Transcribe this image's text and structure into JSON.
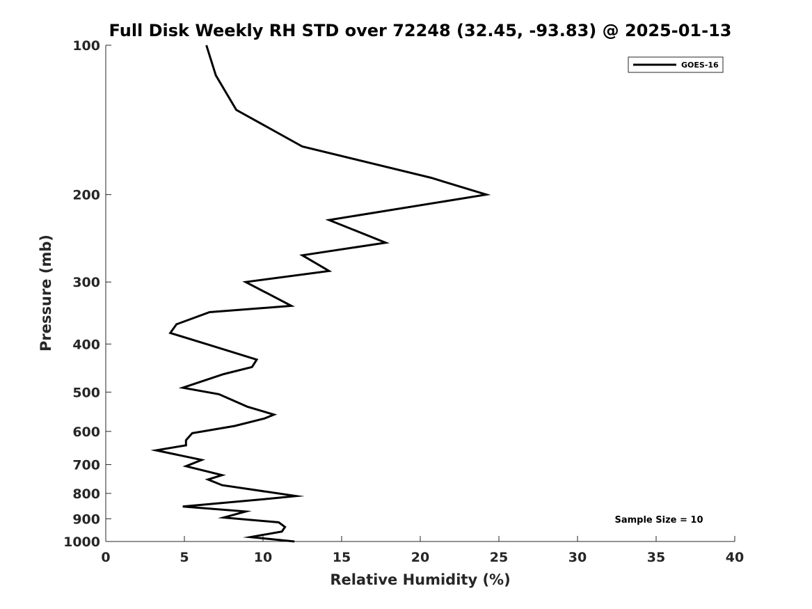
{
  "chart_data": {
    "type": "line",
    "title": "Full Disk Weekly RH STD over 72248 (32.45, -93.83) @ 2025-01-13",
    "xlabel": "Relative Humidity (%)",
    "ylabel": "Pressure (mb)",
    "xlim": [
      0,
      40
    ],
    "ylim": [
      1000,
      100
    ],
    "yscale": "log",
    "y_reversed": true,
    "x_ticks": [
      0,
      5,
      10,
      15,
      20,
      25,
      30,
      35,
      40
    ],
    "x_tick_labels": [
      "0",
      "5",
      "10",
      "15",
      "20",
      "25",
      "30",
      "35",
      "40"
    ],
    "y_ticks": [
      100,
      200,
      300,
      400,
      500,
      600,
      700,
      800,
      900,
      1000
    ],
    "y_tick_labels": [
      "100",
      "200",
      "300",
      "400",
      "500",
      "600",
      "700",
      "800",
      "900",
      "1000"
    ],
    "grid": false,
    "legend_position": "top-right",
    "series": [
      {
        "name": "GOES-16",
        "color": "#000000",
        "x": [
          6.4,
          7.0,
          8.3,
          12.5,
          20.7,
          24.2,
          14.2,
          17.8,
          12.5,
          14.2,
          8.9,
          11.8,
          6.6,
          4.5,
          4.1,
          6.4,
          9.6,
          9.3,
          7.5,
          4.9,
          7.2,
          9.0,
          10.7,
          10.1,
          8.2,
          5.5,
          5.1,
          5.1,
          3.2,
          6.1,
          5.1,
          7.4,
          6.5,
          7.4,
          12.1,
          10.4,
          4.9,
          8.9,
          7.5,
          11.0,
          11.4,
          11.2,
          9.2,
          12.0
        ],
        "y": [
          100,
          115,
          135,
          160,
          185,
          200,
          225,
          250,
          265,
          285,
          300,
          335,
          345,
          365,
          380,
          400,
          430,
          445,
          460,
          490,
          505,
          535,
          555,
          565,
          585,
          605,
          625,
          640,
          655,
          685,
          705,
          735,
          750,
          770,
          810,
          820,
          850,
          870,
          895,
          915,
          935,
          955,
          980,
          1000
        ]
      }
    ],
    "annotations": [
      "Sample Size = 10"
    ]
  }
}
